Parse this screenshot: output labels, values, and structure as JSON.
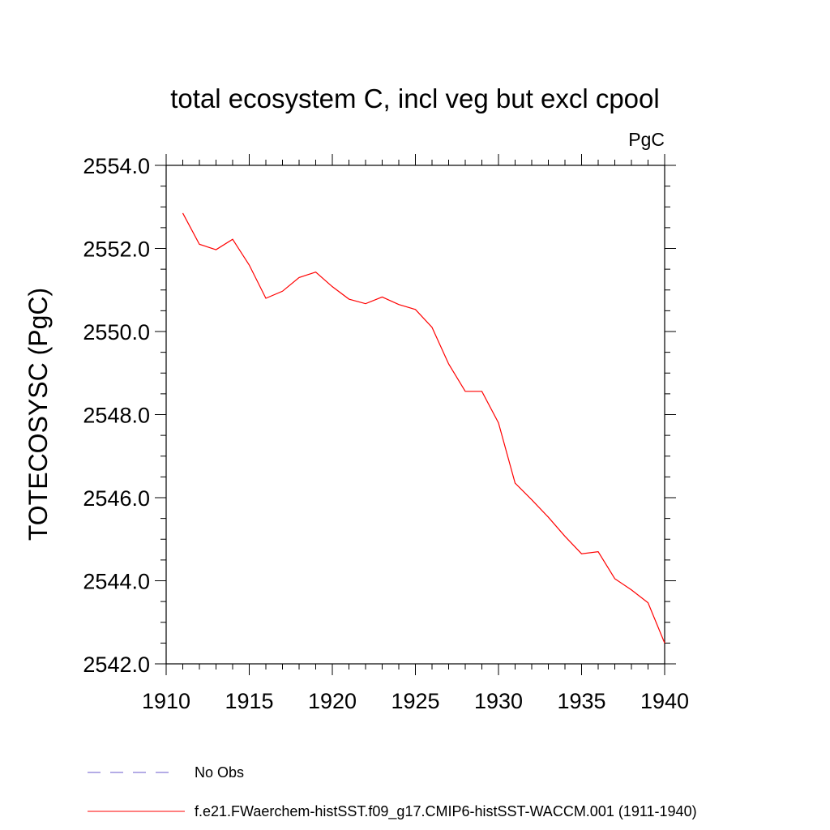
{
  "chart_data": {
    "type": "line",
    "title": "total ecosystem C, incl veg but excl cpool",
    "units": "PgC",
    "ylabel": "TOTECOSYSC  (PgC)",
    "xlabel": "",
    "xlim": [
      1910,
      1940
    ],
    "ylim": [
      2542.0,
      2554.0
    ],
    "x_ticks": [
      1910,
      1915,
      1920,
      1925,
      1930,
      1935,
      1940
    ],
    "x_tick_labels": [
      "1910",
      "1915",
      "1920",
      "1925",
      "1930",
      "1935",
      "1940"
    ],
    "y_ticks": [
      2542,
      2544,
      2546,
      2548,
      2550,
      2552,
      2554
    ],
    "y_tick_labels": [
      "2542.0",
      "2544.0",
      "2546.0",
      "2548.0",
      "2550.0",
      "2552.0",
      "2554.0"
    ],
    "grid": false,
    "legend_position": "bottom",
    "series": [
      {
        "name": "f.e21.FWaerchem-histSST.f09_g17.CMIP6-histSST-WACCM.001 (1911-1940)",
        "color": "#ff0000",
        "dash": "solid",
        "x": [
          1911,
          1912,
          1913,
          1914,
          1915,
          1916,
          1917,
          1918,
          1919,
          1920,
          1921,
          1922,
          1923,
          1924,
          1925,
          1926,
          1927,
          1928,
          1929,
          1930,
          1931,
          1932,
          1933,
          1934,
          1935,
          1936,
          1937,
          1938,
          1939,
          1940
        ],
        "y": [
          2552.85,
          2552.1,
          2551.97,
          2552.22,
          2551.6,
          2550.8,
          2550.97,
          2551.3,
          2551.43,
          2551.08,
          2550.78,
          2550.67,
          2550.83,
          2550.65,
          2550.53,
          2550.1,
          2549.22,
          2548.56,
          2548.56,
          2547.8,
          2546.35,
          2545.95,
          2545.53,
          2545.07,
          2544.65,
          2544.7,
          2544.05,
          2543.78,
          2543.47,
          2542.5
        ]
      },
      {
        "name": "No Obs",
        "color": "#6a5acd",
        "dash": "dashed",
        "x": [],
        "y": []
      }
    ]
  }
}
